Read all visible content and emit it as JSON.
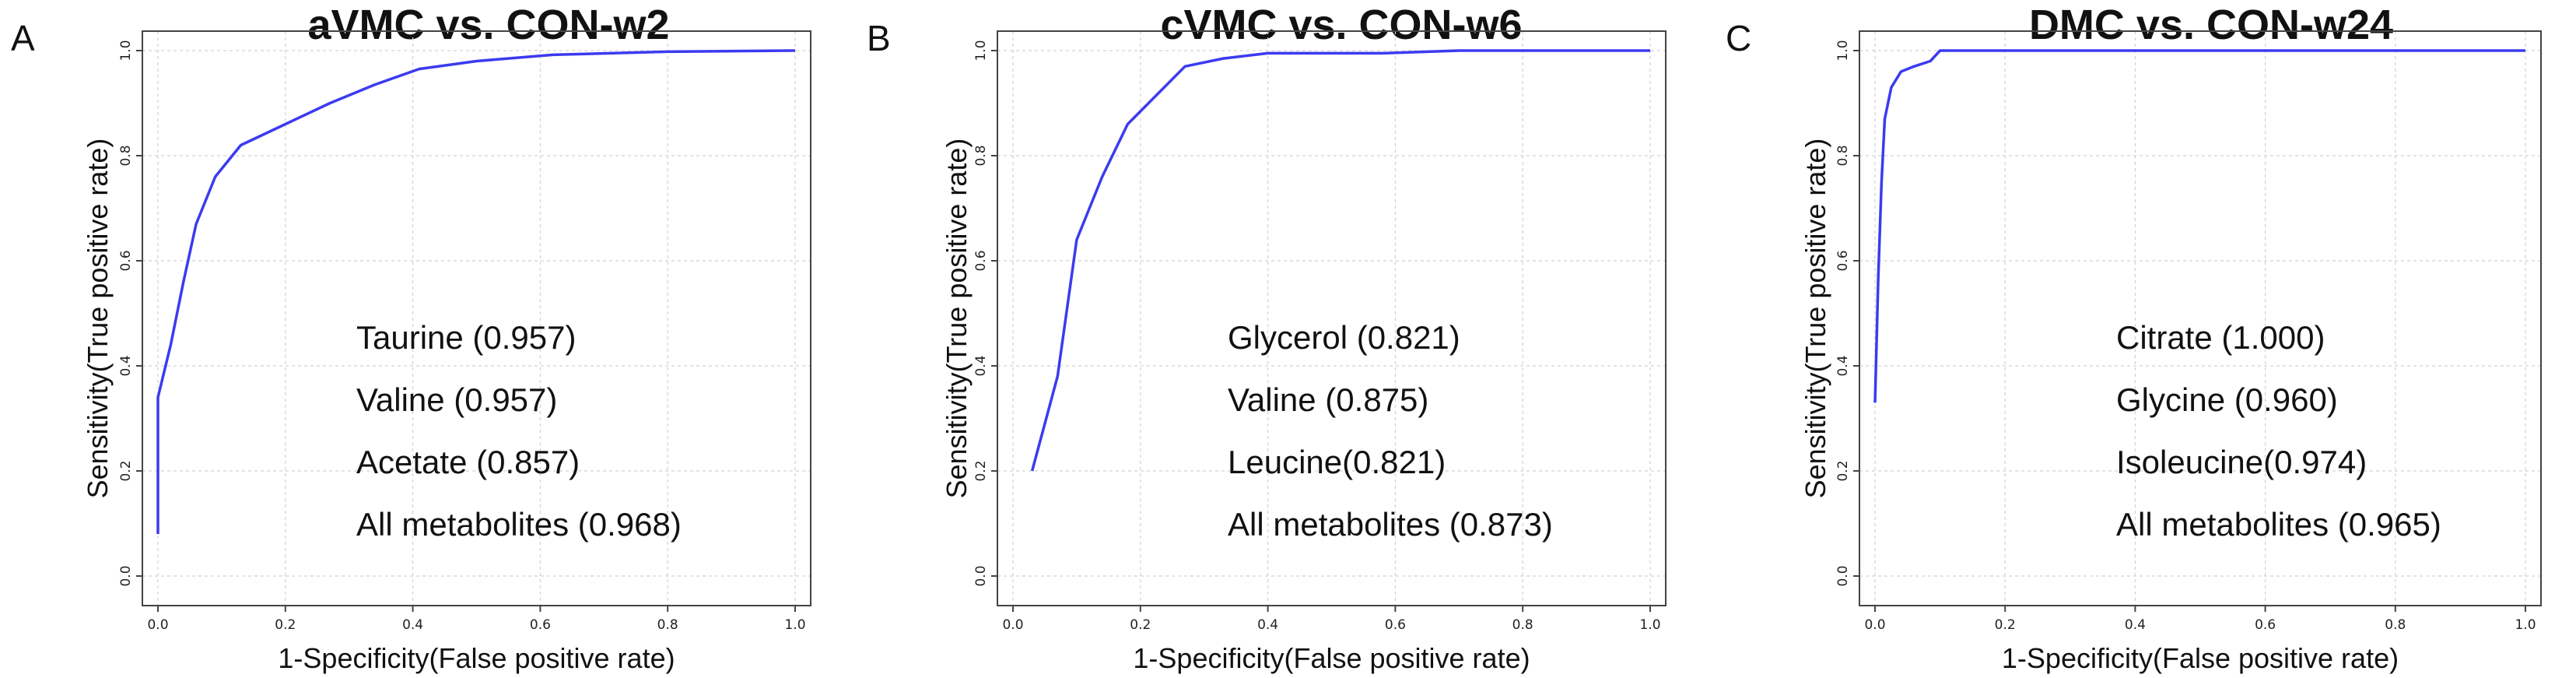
{
  "figure": {
    "panels": [
      {
        "letter": "A",
        "title": "aVMC vs. CON-w2"
      },
      {
        "letter": "B",
        "title": "cVMC vs. CON-w6"
      },
      {
        "letter": "C",
        "title": "DMC vs. CON-w24"
      }
    ],
    "line_color": "#3b3bf0"
  },
  "chart_data": [
    {
      "type": "line",
      "title": "aVMC vs. CON-w2",
      "panel_letter": "A",
      "xlabel": "1-Specificity(False positive rate)",
      "ylabel": "Sensitivity(True positive rate)",
      "xlim": [
        0,
        1
      ],
      "ylim": [
        0,
        1
      ],
      "x_ticks": [
        "0.0",
        "0.2",
        "0.4",
        "0.6",
        "0.8",
        "1.0"
      ],
      "y_ticks": [
        "0.0",
        "0.2",
        "0.4",
        "0.6",
        "0.8",
        "1.0"
      ],
      "grid": true,
      "series": [
        {
          "name": "ROC",
          "x": [
            0.0,
            0.0,
            0.0,
            0.02,
            0.04,
            0.06,
            0.09,
            0.13,
            0.2,
            0.27,
            0.34,
            0.41,
            0.5,
            0.62,
            0.8,
            1.0
          ],
          "y": [
            0.08,
            0.25,
            0.34,
            0.44,
            0.56,
            0.67,
            0.76,
            0.82,
            0.86,
            0.9,
            0.935,
            0.965,
            0.98,
            0.992,
            0.998,
            1.0
          ]
        }
      ],
      "legend_items": [
        "Taurine (0.957)",
        "Valine (0.957)",
        "Acetate (0.857)",
        "All metabolites (0.968)"
      ]
    },
    {
      "type": "line",
      "title": "cVMC vs. CON-w6",
      "panel_letter": "B",
      "xlabel": "1-Specificity(False positive rate)",
      "ylabel": "Sensitivity(True positive rate)",
      "xlim": [
        0,
        1
      ],
      "ylim": [
        0,
        1
      ],
      "x_ticks": [
        "0.0",
        "0.2",
        "0.4",
        "0.6",
        "0.8",
        "1.0"
      ],
      "y_ticks": [
        "0.0",
        "0.2",
        "0.4",
        "0.6",
        "0.8",
        "1.0"
      ],
      "grid": true,
      "series": [
        {
          "name": "ROC",
          "x": [
            0.03,
            0.07,
            0.1,
            0.14,
            0.18,
            0.27,
            0.33,
            0.4,
            0.58,
            0.7,
            1.0
          ],
          "y": [
            0.2,
            0.38,
            0.64,
            0.76,
            0.86,
            0.97,
            0.985,
            0.995,
            0.995,
            1.0,
            1.0
          ]
        }
      ],
      "legend_items": [
        "Glycerol (0.821)",
        "Valine (0.875)",
        "Leucine(0.821)",
        "All metabolites (0.873)"
      ]
    },
    {
      "type": "line",
      "title": "DMC vs. CON-w24",
      "panel_letter": "C",
      "xlabel": "1-Specificity(False positive rate)",
      "ylabel": "Sensitivity(True positive rate)",
      "xlim": [
        0,
        1
      ],
      "ylim": [
        0,
        1
      ],
      "x_ticks": [
        "0.0",
        "0.2",
        "0.4",
        "0.6",
        "0.8",
        "1.0"
      ],
      "y_ticks": [
        "0.0",
        "0.2",
        "0.4",
        "0.6",
        "0.8",
        "1.0"
      ],
      "grid": true,
      "series": [
        {
          "name": "ROC",
          "x": [
            0.0,
            0.005,
            0.01,
            0.015,
            0.025,
            0.04,
            0.06,
            0.085,
            0.1,
            1.0
          ],
          "y": [
            0.33,
            0.57,
            0.75,
            0.87,
            0.93,
            0.96,
            0.97,
            0.98,
            1.0,
            1.0
          ]
        }
      ],
      "legend_items": [
        "Citrate (1.000)",
        "Glycine (0.960)",
        "Isoleucine(0.974)",
        "All metabolites (0.965)"
      ]
    }
  ]
}
